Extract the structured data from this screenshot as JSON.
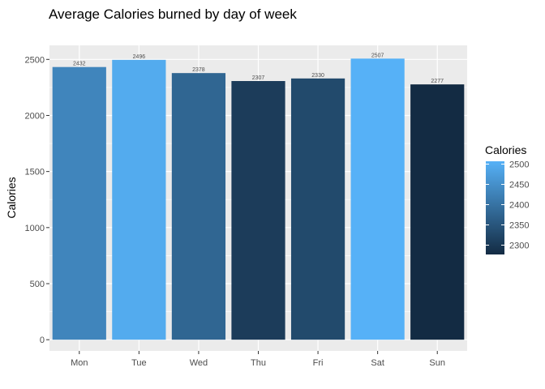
{
  "chart_data": {
    "type": "bar",
    "title": "Average Calories burned by day of week",
    "xlabel": "",
    "ylabel": "Calories",
    "categories": [
      "Mon",
      "Tue",
      "Wed",
      "Thu",
      "Fri",
      "Sat",
      "Sun"
    ],
    "values": [
      2432,
      2496,
      2378,
      2307,
      2330,
      2507,
      2277
    ],
    "data_labels": [
      "2432",
      "2496",
      "2378",
      "2307",
      "2330",
      "2507",
      "2277"
    ],
    "ylim": [
      -100,
      2625
    ],
    "y_ticks": [
      0,
      500,
      1000,
      1500,
      2000,
      2500
    ],
    "y_tick_labels": [
      "0",
      "500",
      "1000",
      "1500",
      "2000",
      "2500"
    ],
    "grid": true,
    "panel_background": "#ebebeb",
    "legend": {
      "title": "Calories",
      "position": "right",
      "ticks": [
        2300,
        2350,
        2400,
        2450,
        2500
      ],
      "tick_labels": [
        "2300",
        "2350",
        "2400",
        "2450",
        "2500"
      ],
      "color_low": "#132b43",
      "color_high": "#56b1f7"
    }
  }
}
